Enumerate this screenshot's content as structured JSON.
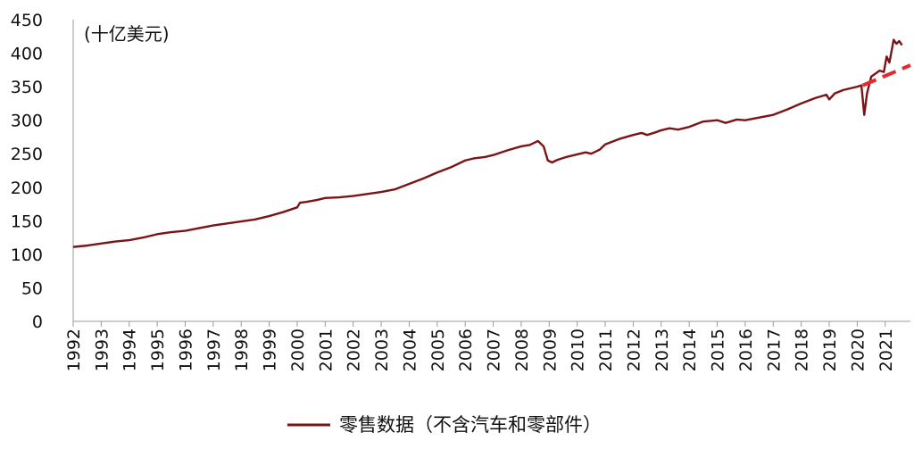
{
  "chart_data": {
    "type": "line",
    "unit_label": "(十亿美元)",
    "ylim": [
      0,
      450
    ],
    "y_ticks": [
      0,
      50,
      100,
      150,
      200,
      250,
      300,
      350,
      400,
      450
    ],
    "x_tick_labels": [
      "1992",
      "1993",
      "1994",
      "1995",
      "1996",
      "1997",
      "1998",
      "1999",
      "2000",
      "2001",
      "2002",
      "2003",
      "2004",
      "2005",
      "2006",
      "2007",
      "2008",
      "2009",
      "2010",
      "2011",
      "2012",
      "2013",
      "2014",
      "2015",
      "2016",
      "2017",
      "2018",
      "2019",
      "2020",
      "2021"
    ],
    "xlim": [
      1992.0,
      2021.9
    ],
    "legend_position": "bottom",
    "series": [
      {
        "name": "零售数据（不含汽车和零部件）",
        "color": "#7b1416",
        "points": [
          [
            1992.0,
            111
          ],
          [
            1992.5,
            113
          ],
          [
            1993.0,
            116
          ],
          [
            1993.5,
            119
          ],
          [
            1994.0,
            121
          ],
          [
            1994.5,
            125
          ],
          [
            1995.0,
            130
          ],
          [
            1995.5,
            133
          ],
          [
            1996.0,
            135
          ],
          [
            1996.5,
            139
          ],
          [
            1997.0,
            143
          ],
          [
            1997.5,
            146
          ],
          [
            1998.0,
            149
          ],
          [
            1998.5,
            152
          ],
          [
            1999.0,
            157
          ],
          [
            1999.5,
            163
          ],
          [
            2000.0,
            170
          ],
          [
            2000.1,
            177
          ],
          [
            2000.3,
            178
          ],
          [
            2000.7,
            181
          ],
          [
            2001.0,
            184
          ],
          [
            2001.5,
            185
          ],
          [
            2002.0,
            187
          ],
          [
            2002.5,
            190
          ],
          [
            2003.0,
            193
          ],
          [
            2003.5,
            197
          ],
          [
            2004.0,
            205
          ],
          [
            2004.5,
            213
          ],
          [
            2005.0,
            222
          ],
          [
            2005.5,
            230
          ],
          [
            2006.0,
            240
          ],
          [
            2006.3,
            243
          ],
          [
            2006.7,
            245
          ],
          [
            2007.0,
            248
          ],
          [
            2007.5,
            255
          ],
          [
            2008.0,
            261
          ],
          [
            2008.3,
            263
          ],
          [
            2008.6,
            269
          ],
          [
            2008.8,
            261
          ],
          [
            2008.95,
            240
          ],
          [
            2009.1,
            237
          ],
          [
            2009.3,
            241
          ],
          [
            2009.6,
            245
          ],
          [
            2010.0,
            249
          ],
          [
            2010.3,
            252
          ],
          [
            2010.5,
            250
          ],
          [
            2010.8,
            256
          ],
          [
            2011.0,
            264
          ],
          [
            2011.5,
            272
          ],
          [
            2012.0,
            278
          ],
          [
            2012.3,
            281
          ],
          [
            2012.5,
            278
          ],
          [
            2012.8,
            282
          ],
          [
            2013.0,
            285
          ],
          [
            2013.3,
            288
          ],
          [
            2013.6,
            286
          ],
          [
            2014.0,
            290
          ],
          [
            2014.5,
            298
          ],
          [
            2015.0,
            300
          ],
          [
            2015.3,
            296
          ],
          [
            2015.7,
            301
          ],
          [
            2016.0,
            300
          ],
          [
            2016.5,
            304
          ],
          [
            2017.0,
            308
          ],
          [
            2017.5,
            316
          ],
          [
            2018.0,
            325
          ],
          [
            2018.5,
            333
          ],
          [
            2018.9,
            338
          ],
          [
            2019.0,
            331
          ],
          [
            2019.2,
            340
          ],
          [
            2019.5,
            345
          ],
          [
            2019.8,
            348
          ],
          [
            2020.0,
            350
          ],
          [
            2020.15,
            352
          ],
          [
            2020.25,
            308
          ],
          [
            2020.35,
            340
          ],
          [
            2020.5,
            365
          ],
          [
            2020.8,
            374
          ],
          [
            2020.95,
            372
          ],
          [
            2021.05,
            395
          ],
          [
            2021.15,
            386
          ],
          [
            2021.3,
            420
          ],
          [
            2021.4,
            414
          ],
          [
            2021.5,
            418
          ],
          [
            2021.6,
            412
          ]
        ]
      },
      {
        "name": "",
        "color": "#e32b2b",
        "style": "dashed",
        "points": [
          [
            2020.2,
            352
          ],
          [
            2021.9,
            382
          ]
        ]
      }
    ]
  }
}
